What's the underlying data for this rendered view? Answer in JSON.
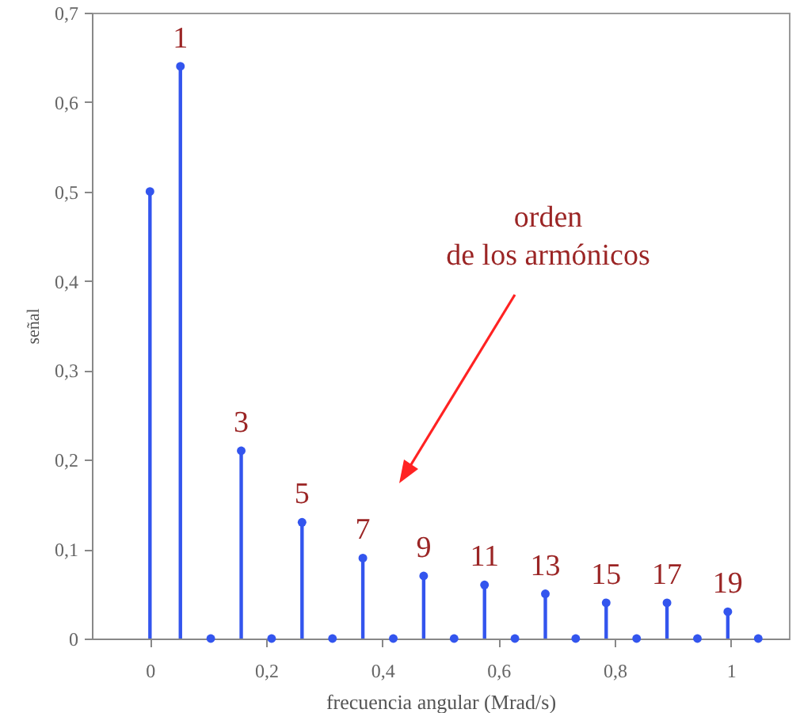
{
  "chart_data": {
    "type": "lollipop",
    "xlabel": "frecuencia angular (Mrad/s)",
    "ylabel": "señal",
    "x": [
      0,
      0.0524,
      0.1047,
      0.1571,
      0.2094,
      0.2618,
      0.3142,
      0.3665,
      0.4189,
      0.4712,
      0.5236,
      0.576,
      0.6283,
      0.6807,
      0.733,
      0.7854,
      0.8378,
      0.8901,
      0.9425,
      0.9948,
      1.0472
    ],
    "series": [
      {
        "color": "#3355ee",
        "values": [
          0.5,
          0.64,
          0,
          0.21,
          0,
          0.13,
          0,
          0.09,
          0,
          0.07,
          0,
          0.06,
          0,
          0.05,
          0,
          0.04,
          0,
          0.04,
          0,
          0.03,
          0
        ]
      }
    ],
    "xlim": [
      -0.1,
      1.1
    ],
    "xticks": [
      0,
      {
        "value": 0.2,
        "label": "0,2"
      },
      {
        "value": 0.4,
        "label": "0,4"
      },
      {
        "value": 0.6,
        "label": "0,6"
      },
      {
        "value": 0.8,
        "label": "0,8"
      },
      1
    ],
    "ylim": [
      0,
      0.7
    ],
    "yticks": [
      0,
      {
        "value": 0.1,
        "label": "0,1"
      },
      {
        "value": 0.2,
        "label": "0,2"
      },
      {
        "value": 0.3,
        "label": "0,3"
      },
      {
        "value": 0.4,
        "label": "0,4"
      },
      {
        "value": 0.5,
        "label": "0,5"
      },
      {
        "value": 0.6,
        "label": "0,6"
      },
      {
        "value": 0.7,
        "label": "0,7"
      }
    ],
    "grid": false,
    "marker": "circle",
    "annotations": [
      {
        "text": "1",
        "x": 0.0524,
        "y": 0.64
      },
      {
        "text": "3",
        "x": 0.1571,
        "y": 0.21
      },
      {
        "text": "5",
        "x": 0.2618,
        "y": 0.13
      },
      {
        "text": "7",
        "x": 0.3665,
        "y": 0.09
      },
      {
        "text": "9",
        "x": 0.4712,
        "y": 0.07
      },
      {
        "text": "11",
        "x": 0.576,
        "y": 0.06
      },
      {
        "text": "13",
        "x": 0.6807,
        "y": 0.05
      },
      {
        "text": "15",
        "x": 0.7854,
        "y": 0.04
      },
      {
        "text": "17",
        "x": 0.8901,
        "y": 0.04
      },
      {
        "text": "19",
        "x": 0.9948,
        "y": 0.03
      },
      "orden\nde los armónicos"
    ]
  }
}
